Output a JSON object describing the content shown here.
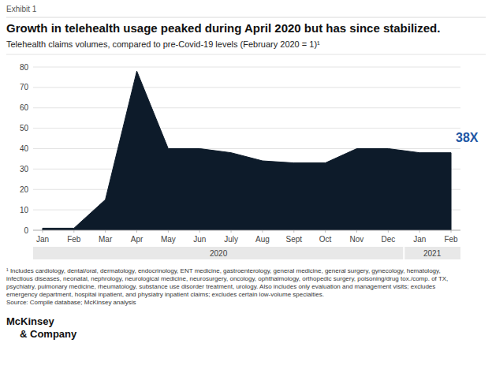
{
  "chart_data": {
    "type": "area",
    "exhibit_label": "Exhibit 1",
    "title": "Growth in telehealth usage peaked during April 2020 but has since stabilized.",
    "subtitle": "Telehealth claims volumes, compared to pre-Covid-19 levels (February 2020 = 1)¹",
    "categories": [
      "Jan",
      "Feb",
      "Mar",
      "Apr",
      "May",
      "Jun",
      "July",
      "Aug",
      "Sept",
      "Oct",
      "Nov",
      "Dec",
      "Jan",
      "Feb"
    ],
    "values": [
      1,
      1,
      15,
      78,
      40,
      40,
      38,
      34,
      33,
      33,
      40,
      40,
      38,
      38
    ],
    "color": "#0d1b2a",
    "ylim": [
      0,
      80
    ],
    "yticks": [
      0,
      10,
      20,
      30,
      40,
      50,
      60,
      70,
      80
    ],
    "grid": true,
    "category_groups": [
      {
        "label": "2020",
        "count": 12
      },
      {
        "label": "2021",
        "count": 2
      }
    ],
    "annotations": [
      {
        "text": "38X",
        "color": "#1f57a4"
      }
    ],
    "footnotes": [
      "¹ Includes cardiology, dental/oral, dermatology, endocrinology, ENT medicine, gastroenterology, general medicine, general surgery, gynecology, hematology,",
      "infectious diseases, neonatal, nephrology, neurological medicine, neurosurgery, oncology, ophthalmology, orthopedic surgery, poisoning/drug tox./comp. of TX,",
      "psychiatry, pulmonary medicine, rheumatology, substance use disorder treatment, urology. Also includes only evaluation and management visits; excludes",
      "emergency department, hospital inpatient, and physiatry inpatient claims; excludes certain low-volume specialties."
    ],
    "source": "Source: Compile database; McKinsey analysis",
    "logo": [
      "McKinsey",
      "& Company"
    ]
  }
}
